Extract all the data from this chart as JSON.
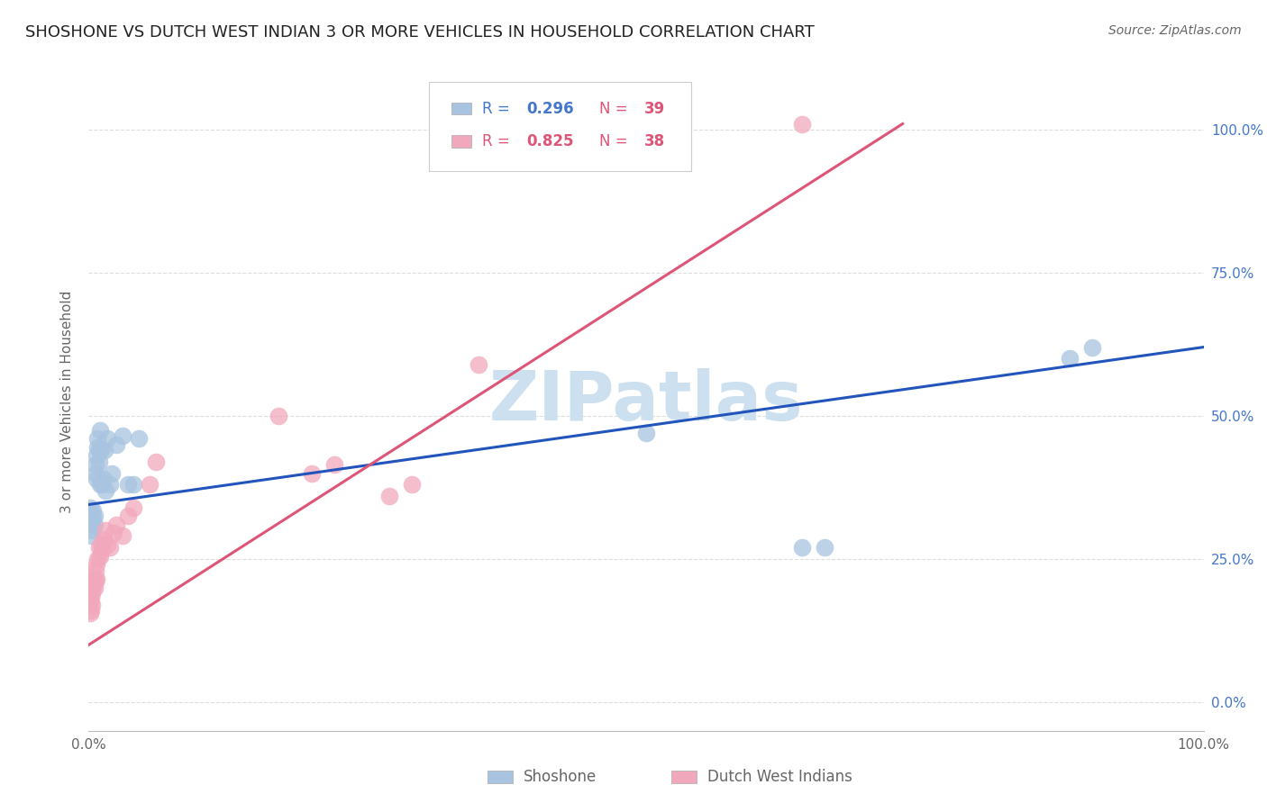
{
  "title": "SHOSHONE VS DUTCH WEST INDIAN 3 OR MORE VEHICLES IN HOUSEHOLD CORRELATION CHART",
  "source": "Source: ZipAtlas.com",
  "ylabel": "3 or more Vehicles in Household",
  "legend_r_blue": "0.296",
  "legend_n_blue": "39",
  "legend_r_pink": "0.825",
  "legend_n_pink": "38",
  "legend_label_blue": "Shoshone",
  "legend_label_pink": "Dutch West Indians",
  "watermark": "ZIPatlas",
  "blue_color": "#a8c4e0",
  "pink_color": "#f2a8bc",
  "blue_line_color": "#2255bb",
  "pink_line_color": "#dd5577",
  "blue_scatter": {
    "x": [
      0.0,
      0.001,
      0.001,
      0.002,
      0.002,
      0.003,
      0.003,
      0.004,
      0.004,
      0.005,
      0.005,
      0.006,
      0.006,
      0.007,
      0.007,
      0.008,
      0.008,
      0.009,
      0.009,
      0.01,
      0.01,
      0.011,
      0.012,
      0.013,
      0.014,
      0.015,
      0.017,
      0.019,
      0.021,
      0.025,
      0.03,
      0.035,
      0.04,
      0.045,
      0.5,
      0.64,
      0.66,
      0.88,
      0.9
    ],
    "y": [
      0.33,
      0.34,
      0.32,
      0.33,
      0.29,
      0.315,
      0.3,
      0.32,
      0.335,
      0.325,
      0.31,
      0.4,
      0.415,
      0.39,
      0.43,
      0.445,
      0.46,
      0.44,
      0.42,
      0.38,
      0.475,
      0.44,
      0.38,
      0.39,
      0.44,
      0.37,
      0.46,
      0.38,
      0.4,
      0.45,
      0.465,
      0.38,
      0.38,
      0.46,
      0.47,
      0.27,
      0.27,
      0.6,
      0.62
    ]
  },
  "pink_scatter": {
    "x": [
      0.0,
      0.001,
      0.001,
      0.002,
      0.002,
      0.003,
      0.003,
      0.004,
      0.004,
      0.005,
      0.005,
      0.006,
      0.006,
      0.007,
      0.007,
      0.008,
      0.009,
      0.01,
      0.011,
      0.012,
      0.013,
      0.015,
      0.017,
      0.019,
      0.022,
      0.025,
      0.03,
      0.035,
      0.04,
      0.055,
      0.06,
      0.17,
      0.2,
      0.22,
      0.27,
      0.29,
      0.35,
      0.64
    ],
    "y": [
      0.195,
      0.175,
      0.155,
      0.18,
      0.16,
      0.19,
      0.17,
      0.2,
      0.22,
      0.2,
      0.215,
      0.21,
      0.23,
      0.24,
      0.215,
      0.25,
      0.27,
      0.255,
      0.275,
      0.265,
      0.285,
      0.3,
      0.275,
      0.27,
      0.295,
      0.31,
      0.29,
      0.325,
      0.34,
      0.38,
      0.42,
      0.5,
      0.4,
      0.415,
      0.36,
      0.38,
      0.59,
      1.01
    ]
  },
  "blue_line_x": [
    0.0,
    1.0
  ],
  "blue_line_y": [
    0.345,
    0.62
  ],
  "pink_line_x": [
    0.0,
    0.73
  ],
  "pink_line_y": [
    0.1,
    1.01
  ],
  "xlim": [
    0.0,
    1.0
  ],
  "ylim": [
    -0.05,
    1.1
  ],
  "yticks": [
    0.0,
    0.25,
    0.5,
    0.75,
    1.0
  ],
  "ytick_labels": [
    "0.0%",
    "25.0%",
    "50.0%",
    "75.0%",
    "100.0%"
  ],
  "xticks": [
    0.0,
    1.0
  ],
  "xtick_labels": [
    "0.0%",
    "100.0%"
  ],
  "background_color": "#ffffff",
  "grid_color": "#dddddd",
  "title_fontsize": 13,
  "source_fontsize": 10,
  "axis_label_color": "#666666",
  "right_tick_color": "#4477cc",
  "watermark_color": "#cce0f0"
}
